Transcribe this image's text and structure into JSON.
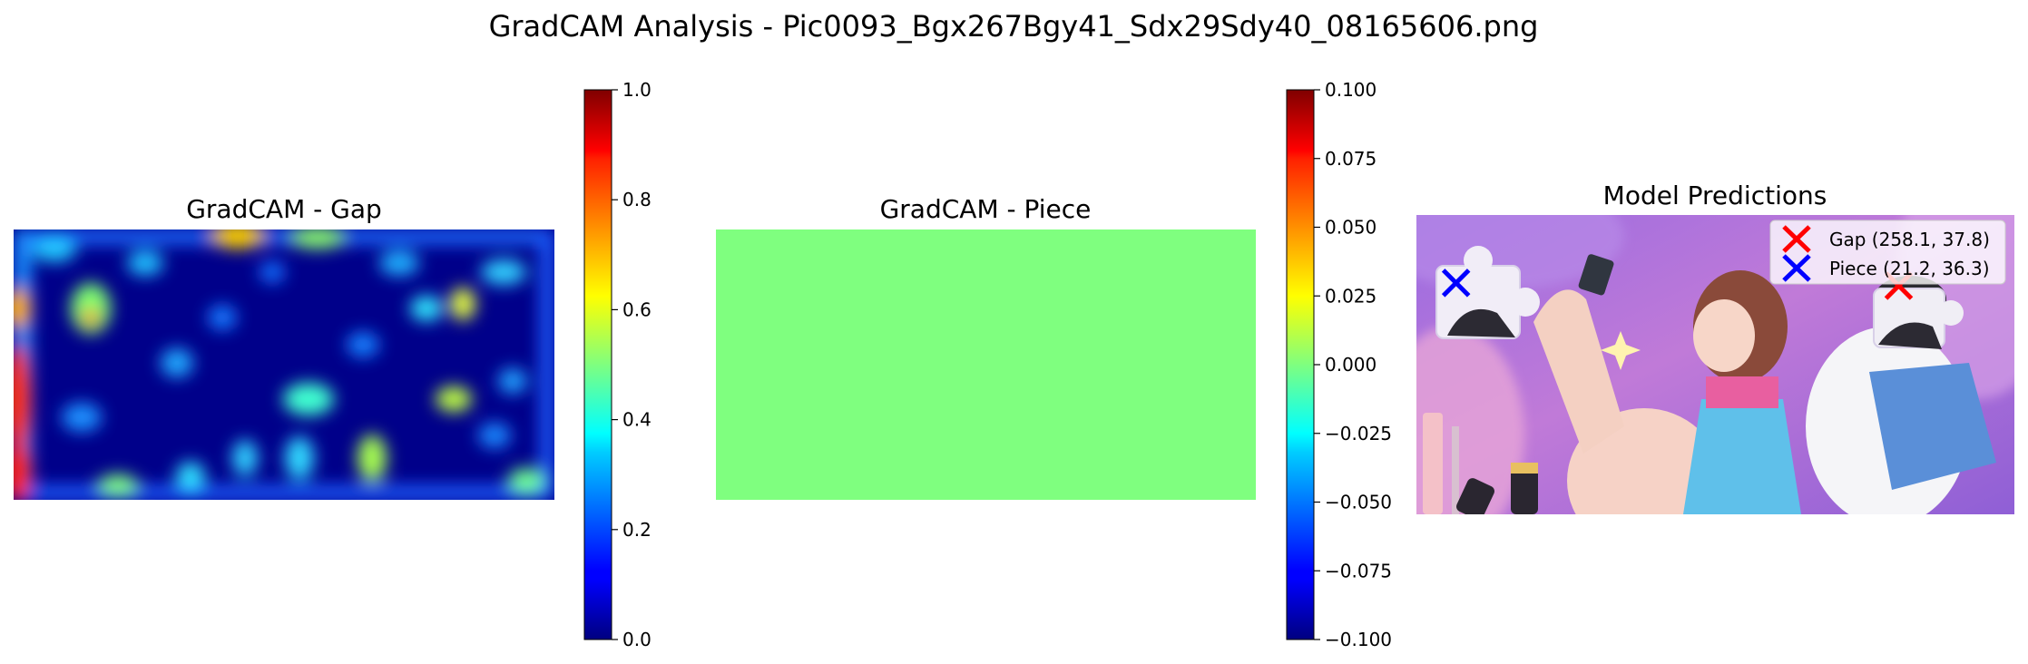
{
  "figure": {
    "suptitle": "GradCAM Analysis - Pic0093_Bgx267Bgy41_Sdx29Sdy40_08165606.png"
  },
  "chart_data": [
    {
      "type": "heatmap",
      "title": "GradCAM - Gap",
      "colormap": "jet",
      "colorbar": {
        "range": [
          0.0,
          1.0
        ],
        "ticks": [
          "0.0",
          "0.2",
          "0.4",
          "0.6",
          "0.8",
          "1.0"
        ]
      },
      "axes_visible": false,
      "description_hotspots": [
        {
          "x": 0.02,
          "y": 0.6,
          "v": 0.9
        },
        {
          "x": 0.02,
          "y": 0.9,
          "v": 0.85
        },
        {
          "x": 0.4,
          "y": 0.05,
          "v": 0.75
        },
        {
          "x": 0.13,
          "y": 0.32,
          "v": 0.7
        },
        {
          "x": 0.84,
          "y": 0.28,
          "v": 0.65
        },
        {
          "x": 0.56,
          "y": 0.05,
          "v": 0.6
        },
        {
          "x": 0.68,
          "y": 0.85,
          "v": 0.55
        },
        {
          "x": 0.2,
          "y": 0.95,
          "v": 0.5
        },
        {
          "x": 0.55,
          "y": 0.65,
          "v": 0.55
        },
        {
          "x": 0.82,
          "y": 0.62,
          "v": 0.5
        }
      ]
    },
    {
      "type": "heatmap",
      "title": "GradCAM - Piece",
      "colormap": "jet",
      "uniform_value": 0.0,
      "colorbar": {
        "range": [
          -0.1,
          0.1
        ],
        "ticks": [
          "−0.100",
          "−0.075",
          "−0.050",
          "−0.025",
          "0.000",
          "0.025",
          "0.050",
          "0.075",
          "0.100"
        ]
      },
      "axes_visible": false
    },
    {
      "type": "scatter",
      "title": "Model Predictions",
      "axes_visible": false,
      "series": [
        {
          "name": "Gap (258.1, 37.8)",
          "marker": "x",
          "color": "#ff0000",
          "points": [
            [
              258.1,
              37.8
            ]
          ]
        },
        {
          "name": "Piece (21.2, 36.3)",
          "marker": "x",
          "color": "#0000ff",
          "points": [
            [
              21.2,
              36.3
            ]
          ]
        }
      ],
      "legend_position": "upper right"
    }
  ]
}
